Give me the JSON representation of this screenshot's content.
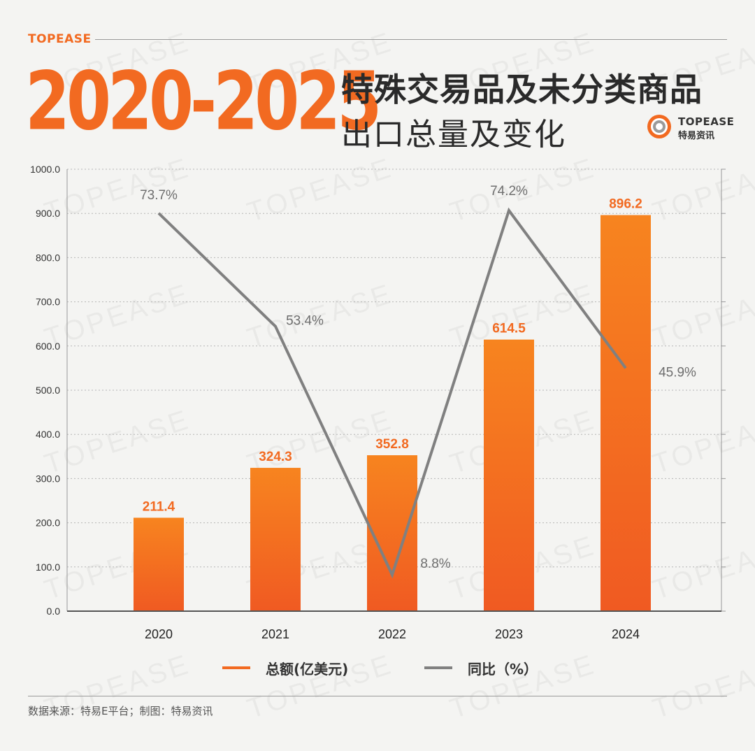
{
  "header": {
    "brand": "TOPEASE",
    "big_title": "2020-2025",
    "title_line1": "特殊交易品及未分类商品",
    "title_line2": "出口总量及变化",
    "logo_text": "TOPEASE",
    "logo_sub": "特易资讯"
  },
  "watermark": "TOPEASE",
  "colors": {
    "bar": "#f26a21",
    "line": "#808080",
    "accent": "#f26a21"
  },
  "chart_data": {
    "type": "bar",
    "categories": [
      "2020",
      "2021",
      "2022",
      "2023",
      "2024"
    ],
    "series": [
      {
        "name": "总额(亿美元)",
        "type": "bar",
        "values": [
          211.4,
          324.3,
          352.8,
          614.5,
          896.2
        ],
        "labels": [
          "211.4",
          "324.3",
          "352.8",
          "614.5",
          "896.2"
        ]
      },
      {
        "name": "同比（%）",
        "type": "line",
        "values": [
          73.7,
          53.4,
          8.8,
          74.2,
          45.9
        ],
        "labels": [
          "73.7%",
          "53.4%",
          "8.8%",
          "74.2%",
          "45.9%"
        ]
      }
    ],
    "ylim": [
      0,
      1000
    ],
    "yticks": [
      "0.0",
      "100.0",
      "200.0",
      "300.0",
      "400.0",
      "500.0",
      "600.0",
      "700.0",
      "800.0",
      "900.0",
      "1000.0"
    ],
    "grid": true,
    "legend_position": "bottom"
  },
  "legend": {
    "bar_label": "总额(亿美元)",
    "line_label": "同比（%）"
  },
  "footer": {
    "source": "数据来源：特易E平台；制图：特易资讯"
  }
}
